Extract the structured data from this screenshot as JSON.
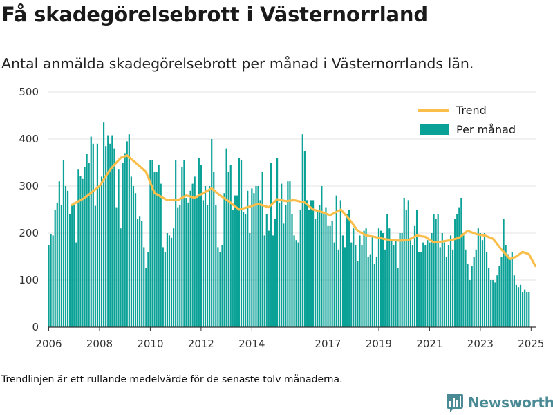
{
  "title": "Få skadegörelsebrott i Västernorrland",
  "subtitle": "Antal anmälda skadegörelsebrott per månad i Västernorrlands län.",
  "footnote": "Trendlinjen är ett rullande medelvärde för de senaste tolv månaderna.",
  "brand": "Newsworthy",
  "colors": {
    "bars": "#0aa197",
    "trend": "#fbbe4a",
    "grid": "#e3e3e3",
    "brand": "#4a8a95"
  },
  "chart_data": {
    "type": "bar",
    "xlim": [
      "2006-01",
      "2025-04"
    ],
    "ylim": [
      0,
      500
    ],
    "y_ticks": [
      "0",
      "100",
      "200",
      "300",
      "400",
      "500"
    ],
    "x_ticks": [
      {
        "label": "2006",
        "date": "2006-01"
      },
      {
        "label": "2008",
        "date": "2008-01"
      },
      {
        "label": "2010",
        "date": "2010-01"
      },
      {
        "label": "2012",
        "date": "2012-01"
      },
      {
        "label": "2014",
        "date": "2014-01"
      },
      {
        "label": "2017",
        "date": "2017-01"
      },
      {
        "label": "2019",
        "date": "2019-01"
      },
      {
        "label": "2021",
        "date": "2021-01"
      },
      {
        "label": "2023",
        "date": "2023-01"
      },
      {
        "label": "2025",
        "date": "2025-01"
      }
    ],
    "legend": {
      "position": "top-right",
      "trend_label": "Trend",
      "bars_label": "Per månad"
    },
    "series": [
      {
        "name": "Per månad",
        "start": "2006-01",
        "values": [
          175,
          198,
          195,
          250,
          265,
          310,
          260,
          355,
          300,
          290,
          240,
          260,
          265,
          180,
          335,
          322,
          315,
          340,
          368,
          350,
          405,
          390,
          258,
          390,
          302,
          320,
          435,
          385,
          408,
          390,
          408,
          380,
          255,
          335,
          210,
          350,
          370,
          395,
          410,
          320,
          300,
          285,
          230,
          235,
          225,
          170,
          125,
          160,
          355,
          355,
          330,
          330,
          345,
          305,
          170,
          160,
          200,
          195,
          190,
          210,
          355,
          255,
          260,
          340,
          355,
          275,
          265,
          290,
          305,
          320,
          275,
          360,
          345,
          270,
          300,
          260,
          300,
          400,
          330,
          260,
          170,
          160,
          175,
          285,
          380,
          330,
          345,
          250,
          280,
          280,
          360,
          355,
          245,
          240,
          290,
          200,
          295,
          285,
          300,
          300,
          270,
          330,
          195,
          240,
          205,
          350,
          195,
          230,
          360,
          265,
          305,
          220,
          260,
          310,
          310,
          240,
          195,
          185,
          180,
          250,
          410,
          375,
          270,
          250,
          270,
          270,
          230,
          245,
          260,
          300,
          240,
          255,
          215,
          215,
          225,
          180,
          280,
          165,
          270,
          195,
          170,
          240,
          250,
          180,
          210,
          175,
          140,
          195,
          175,
          205,
          210,
          150,
          155,
          195,
          135,
          150,
          210,
          205,
          200,
          165,
          240,
          210,
          185,
          175,
          185,
          125,
          200,
          200,
          275,
          250,
          270,
          190,
          175,
          215,
          250,
          160,
          160,
          180,
          175,
          185,
          180,
          200,
          240,
          230,
          240,
          170,
          200,
          180,
          150,
          175,
          195,
          165,
          230,
          240,
          255,
          275,
          200,
          165,
          135,
          100,
          130,
          150,
          165,
          210,
          200,
          185,
          200,
          160,
          125,
          100,
          100,
          95,
          110,
          130,
          150,
          230,
          175,
          155,
          145,
          160,
          110,
          90,
          85,
          90,
          75,
          80,
          75,
          75
        ]
      },
      {
        "name": "Trend",
        "x": [
          "2006-12",
          "2007-06",
          "2008-01",
          "2008-06",
          "2008-11",
          "2009-02",
          "2009-06",
          "2009-11",
          "2010-03",
          "2010-09",
          "2011-02",
          "2011-06",
          "2011-10",
          "2012-02",
          "2012-06",
          "2012-10",
          "2013-02",
          "2013-07",
          "2013-11",
          "2014-04",
          "2014-09",
          "2015-01",
          "2015-05",
          "2015-09",
          "2016-02",
          "2016-06",
          "2016-10",
          "2017-02",
          "2017-07",
          "2017-11",
          "2018-03",
          "2018-07",
          "2018-11",
          "2019-03",
          "2019-07",
          "2019-11",
          "2020-03",
          "2020-07",
          "2020-11",
          "2021-03",
          "2021-07",
          "2021-11",
          "2022-03",
          "2022-07",
          "2022-11",
          "2023-03",
          "2023-07",
          "2023-11",
          "2024-03",
          "2024-06",
          "2024-09",
          "2024-12",
          "2025-03"
        ],
        "values": [
          260,
          275,
          300,
          335,
          360,
          365,
          350,
          330,
          285,
          270,
          270,
          280,
          275,
          285,
          295,
          280,
          268,
          250,
          255,
          262,
          255,
          272,
          268,
          270,
          265,
          250,
          245,
          238,
          250,
          230,
          205,
          195,
          192,
          188,
          185,
          184,
          185,
          195,
          192,
          180,
          182,
          185,
          190,
          205,
          198,
          195,
          188,
          165,
          145,
          150,
          160,
          155,
          130
        ]
      }
    ]
  }
}
